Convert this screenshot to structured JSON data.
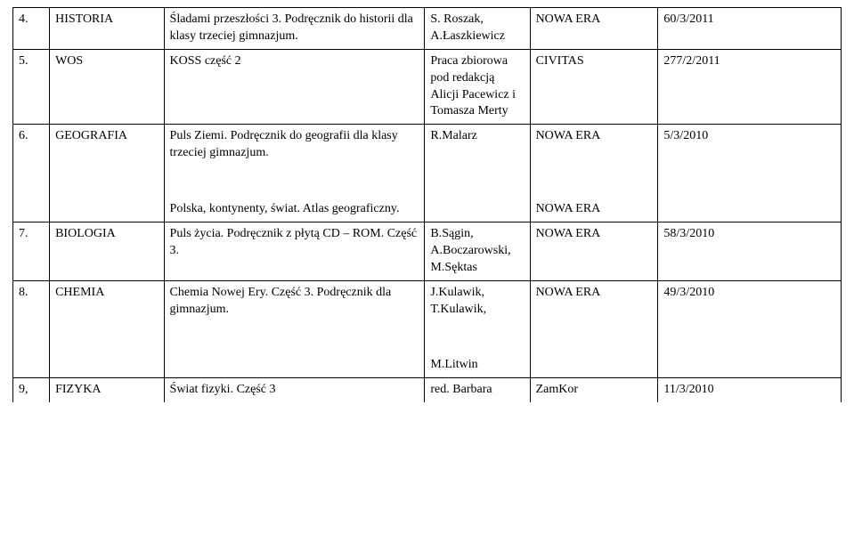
{
  "rows": [
    {
      "num": "4.",
      "subject": "HISTORIA",
      "title": "Śladami przeszłości 3. Podręcznik do historii dla klasy trzeciej gimnazjum.",
      "author": "S. Roszak, A.Łaszkiewicz",
      "publisher": "NOWA ERA",
      "code": "60/3/2011"
    },
    {
      "num": "5.",
      "subject": "WOS",
      "title": "KOSS część 2",
      "author": "Praca zbiorowa pod redakcją Alicji Pacewicz i Tomasza Merty",
      "publisher": "CIVITAS",
      "code": "277/2/2011"
    },
    {
      "num": "6.",
      "subject": "GEOGRAFIA",
      "title": "Puls Ziemi. Podręcznik do geografii dla klasy trzeciej gimnazjum.",
      "author": "R.Malarz",
      "publisher": "NOWA ERA",
      "code": "5/3/2010"
    }
  ],
  "row6b": {
    "title": "Polska, kontynenty, świat. Atlas geograficzny.",
    "publisher": "NOWA ERA"
  },
  "rows2": [
    {
      "num": "7.",
      "subject": "BIOLOGIA",
      "title": "Puls życia. Podręcznik z płytą CD – ROM. Część 3.",
      "author": "B.Sągin, A.Boczarowski, M.Sęktas",
      "publisher": "NOWA ERA",
      "code": "58/3/2010"
    },
    {
      "num": "8.",
      "subject": "CHEMIA",
      "title": "Chemia Nowej Ery. Część 3. Podręcznik dla gimnazjum.",
      "author": "J.Kulawik, T.Kulawik,",
      "publisher": "NOWA ERA",
      "code": "49/3/2010"
    }
  ],
  "row8b": {
    "author": "M.Litwin"
  },
  "row9": {
    "num": "9,",
    "subject": "FIZYKA",
    "title": "Świat fizyki. Część 3",
    "author": "red. Barbara",
    "publisher": "ZamKor",
    "code": "11/3/2010"
  }
}
